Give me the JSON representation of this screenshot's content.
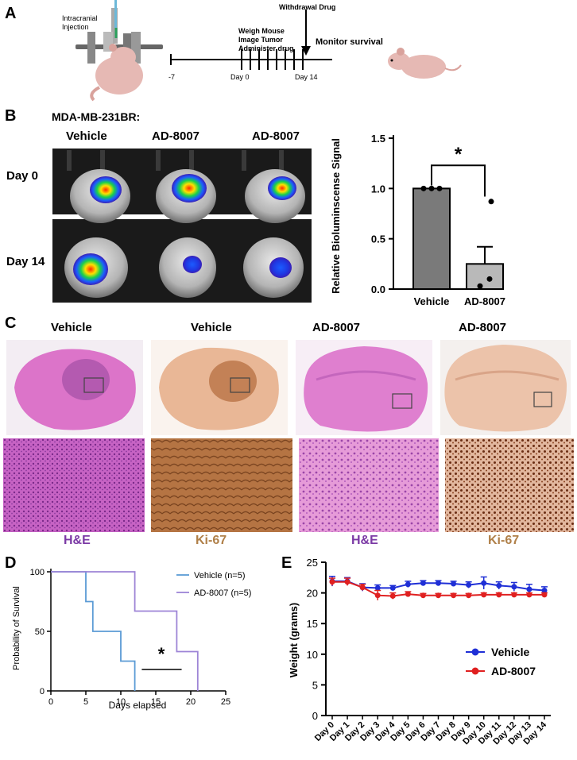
{
  "panels": {
    "A": {
      "letter": "A",
      "injection_label_1": "Intracranial",
      "injection_label_2": "Injection",
      "steps_1": "Weigh Mouse",
      "steps_2": "Image Tumor",
      "steps_3": "Administer drug",
      "withdrawal": "Withdrawal Drug",
      "monitor": "Monitor survival",
      "tick_start": "-7",
      "tick_day0": "Day 0",
      "tick_day14": "Day 14"
    },
    "B": {
      "letter": "B",
      "cell_line": "MDA-MB-231BR:",
      "col_1": "Vehicle",
      "col_2": "AD-8007",
      "col_3": "AD-8007",
      "row_1": "Day 0",
      "row_2": "Day 14"
    },
    "C": {
      "letter": "C",
      "titles": [
        "Vehicle",
        "Vehicle",
        "AD-8007",
        "AD-8007"
      ],
      "stains": [
        "H&E",
        "Ki-67",
        "H&E",
        "Ki-67"
      ],
      "stain_colors": [
        "#7b3aa5",
        "#b08049",
        "#7b3aa5",
        "#b08049"
      ]
    },
    "D": {
      "letter": "D"
    },
    "E": {
      "letter": "E"
    }
  },
  "chart_data": [
    {
      "id": "B-bar",
      "type": "bar",
      "categories": [
        "Vehicle",
        "AD-8007"
      ],
      "values": [
        1.0,
        0.25
      ],
      "errors": [
        0.0,
        0.17
      ],
      "points": [
        [
          1.0,
          1.0,
          1.0
        ],
        [
          0.87,
          0.03,
          0.1
        ]
      ],
      "ylabel": "Relative Bioluminscense Signal",
      "ylim": [
        0,
        1.5
      ],
      "yticks": [
        "0.0",
        "0.5",
        "1.0",
        "1.5"
      ],
      "significance": "*",
      "colors": [
        "#7a7a7a",
        "#b9b9b9"
      ]
    },
    {
      "id": "D-survival",
      "type": "line",
      "xlabel": "Days elapsed",
      "ylabel": "Probability of Survival",
      "xlim": [
        0,
        25
      ],
      "ylim": [
        0,
        100
      ],
      "xticks": [
        "0",
        "5",
        "10",
        "15",
        "20",
        "25"
      ],
      "yticks": [
        "0",
        "50",
        "100"
      ],
      "significance": "*",
      "series": [
        {
          "name": "Vehicle (n=5)",
          "color": "#5b9bd5",
          "steps": [
            [
              0,
              100
            ],
            [
              5,
              100
            ],
            [
              5,
              75
            ],
            [
              6,
              75
            ],
            [
              6,
              50
            ],
            [
              10,
              50
            ],
            [
              10,
              25
            ],
            [
              12,
              25
            ],
            [
              12,
              0
            ]
          ]
        },
        {
          "name": "AD-8007 (n=5)",
          "color": "#9d84d6",
          "steps": [
            [
              0,
              100
            ],
            [
              12,
              100
            ],
            [
              12,
              67
            ],
            [
              18,
              67
            ],
            [
              18,
              33
            ],
            [
              21,
              33
            ],
            [
              21,
              0
            ]
          ]
        }
      ]
    },
    {
      "id": "E-weight",
      "type": "line",
      "ylabel": "Weight (grams)",
      "ylim": [
        0,
        25
      ],
      "yticks": [
        "0",
        "5",
        "10",
        "15",
        "20",
        "25"
      ],
      "categories": [
        "Day 0",
        "Day 1",
        "Day 2",
        "Day 3",
        "Day 4",
        "Day 5",
        "Day 6",
        "Day 7",
        "Day 8",
        "Day 9",
        "Day 10",
        "Day 11",
        "Day 12",
        "Day 13",
        "Day 14"
      ],
      "series": [
        {
          "name": "Vehicle",
          "color": "#1f2fd6",
          "values": [
            21.9,
            21.9,
            20.9,
            20.8,
            20.8,
            21.4,
            21.6,
            21.6,
            21.5,
            21.3,
            21.6,
            21.2,
            21.0,
            20.6,
            20.4
          ],
          "err": [
            0.8,
            0.6,
            0.6,
            0.5,
            0.4,
            0.5,
            0.4,
            0.4,
            0.4,
            0.5,
            1.0,
            0.6,
            0.7,
            0.8,
            0.6
          ]
        },
        {
          "name": "AD-8007",
          "color": "#e02020",
          "values": [
            21.8,
            21.8,
            20.9,
            19.6,
            19.5,
            19.8,
            19.6,
            19.6,
            19.6,
            19.6,
            19.7,
            19.7,
            19.7,
            19.7,
            19.7
          ],
          "err": [
            0.6,
            0.6,
            0.5,
            0.8,
            0.5,
            0.4,
            0.3,
            0.3,
            0.3,
            0.3,
            0.3,
            0.3,
            0.3,
            0.3,
            0.3
          ]
        }
      ]
    }
  ]
}
